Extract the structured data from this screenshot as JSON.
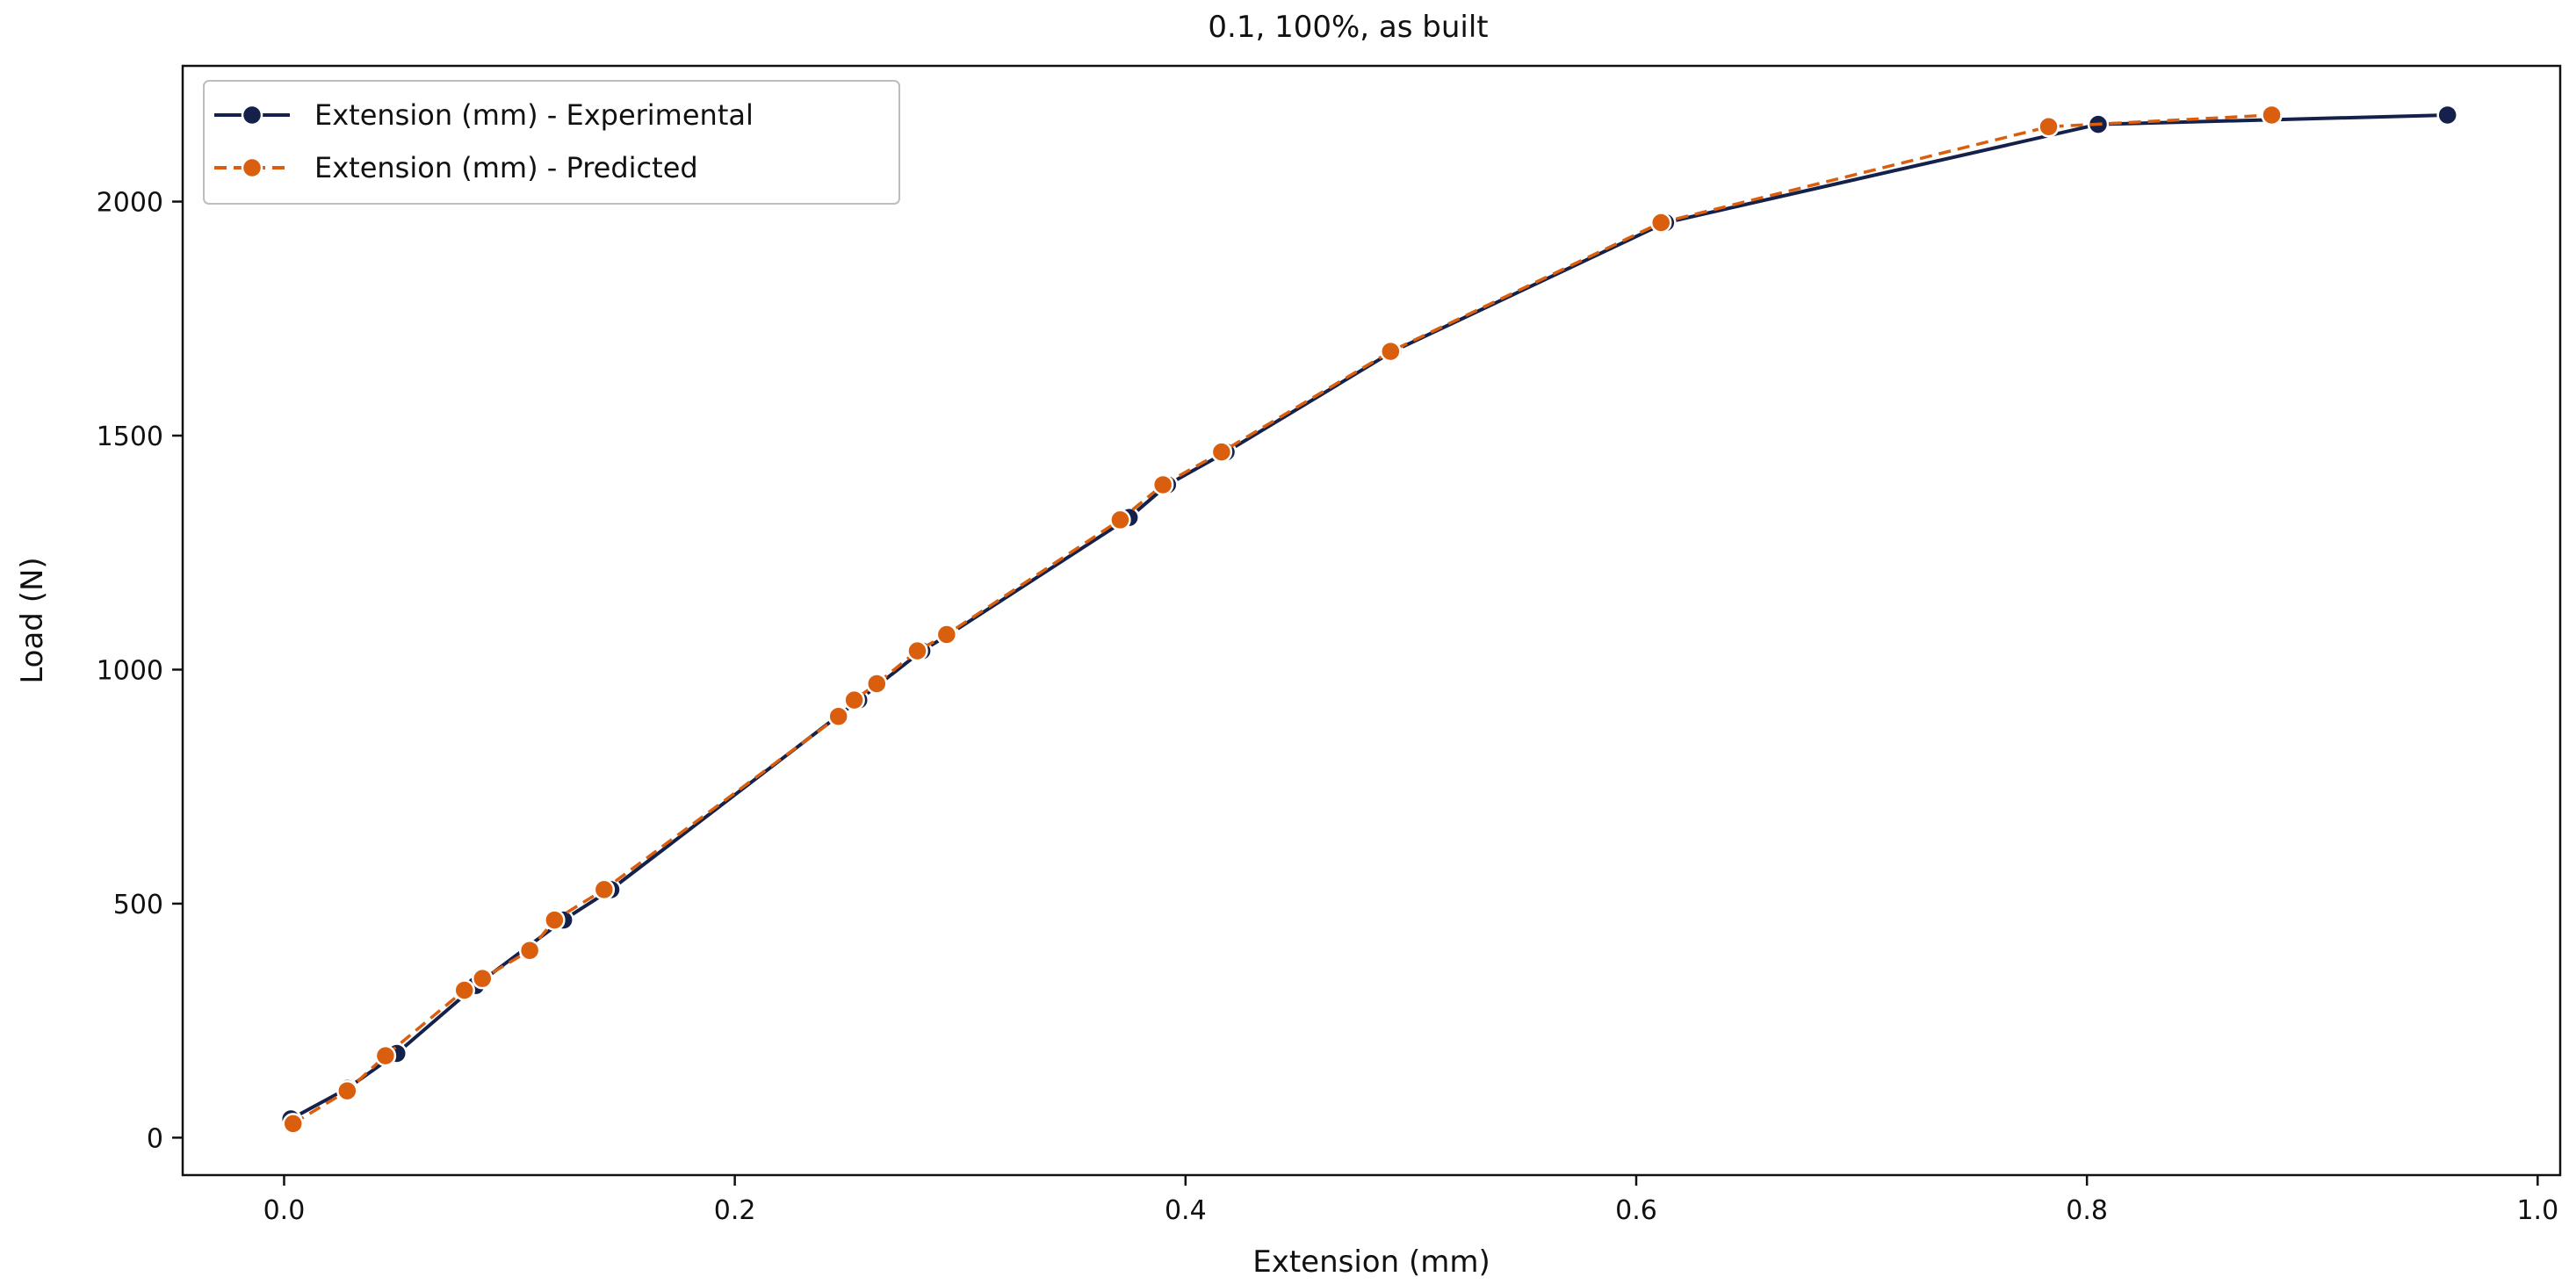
{
  "chart_data": {
    "type": "line",
    "title": "0.1, 100%, as built",
    "xlabel": "Extension (mm)",
    "ylabel": "Load (N)",
    "xlim": [
      -0.045,
      1.01
    ],
    "ylim": [
      -80,
      2290
    ],
    "xticks": [
      0.0,
      0.2,
      0.4,
      0.6,
      0.8,
      1.0
    ],
    "xtick_labels": [
      "0.0",
      "0.2",
      "0.4",
      "0.6",
      "0.8",
      "1.0"
    ],
    "yticks": [
      0,
      500,
      1000,
      1500,
      2000
    ],
    "ytick_labels": [
      "0",
      "500",
      "1000",
      "1500",
      "2000"
    ],
    "grid": false,
    "legend_position": "top-left",
    "series": [
      {
        "name": "Extension (mm) - Experimental",
        "color": "#14214a",
        "line_style": "solid",
        "marker": "circle",
        "x": [
          0.003,
          0.028,
          0.05,
          0.085,
          0.124,
          0.145,
          0.255,
          0.283,
          0.295,
          0.375,
          0.392,
          0.418,
          0.492,
          0.613,
          0.805,
          0.96
        ],
        "y": [
          40,
          105,
          180,
          325,
          465,
          530,
          935,
          1040,
          1075,
          1325,
          1395,
          1465,
          1680,
          1955,
          2165,
          2185
        ]
      },
      {
        "name": "Extension (mm) - Predicted",
        "color": "#d95f0e",
        "line_style": "dashed",
        "marker": "circle",
        "x": [
          0.004,
          0.028,
          0.045,
          0.08,
          0.088,
          0.109,
          0.12,
          0.142,
          0.246,
          0.253,
          0.263,
          0.281,
          0.294,
          0.371,
          0.39,
          0.416,
          0.491,
          0.611,
          0.783,
          0.882
        ],
        "y": [
          30,
          100,
          175,
          315,
          340,
          400,
          465,
          530,
          900,
          935,
          970,
          1040,
          1075,
          1320,
          1395,
          1465,
          1680,
          1955,
          2160,
          2185
        ]
      }
    ]
  }
}
